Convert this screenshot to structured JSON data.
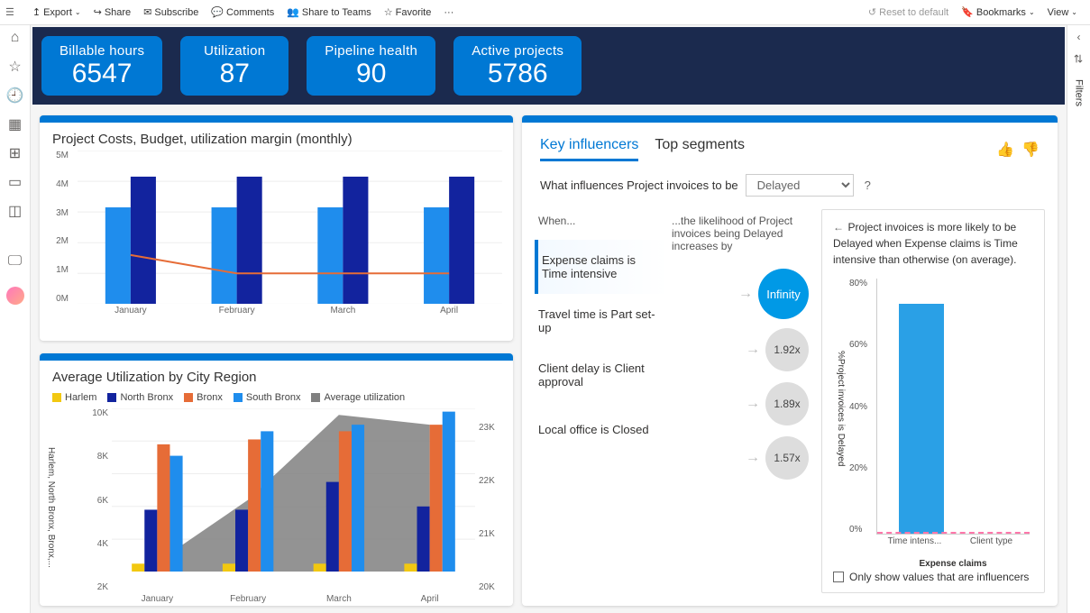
{
  "toolbar": {
    "left": [
      {
        "icon": "export",
        "label": "Export",
        "chev": true
      },
      {
        "icon": "share",
        "label": "Share"
      },
      {
        "icon": "subscribe",
        "label": "Subscribe"
      },
      {
        "icon": "comments",
        "label": "Comments"
      },
      {
        "icon": "teams",
        "label": "Share to Teams"
      },
      {
        "icon": "favorite",
        "label": "Favorite"
      },
      {
        "icon": "more",
        "label": "···"
      }
    ],
    "right": [
      {
        "icon": "reset",
        "label": "Reset to default",
        "muted": true
      },
      {
        "icon": "bookmark",
        "label": "Bookmarks",
        "chev": true
      },
      {
        "icon": "view",
        "label": "View",
        "chev": true
      }
    ]
  },
  "filters_label": "Filters",
  "kpis": [
    {
      "title": "Billable hours",
      "value": "6547"
    },
    {
      "title": "Utilization",
      "value": "87"
    },
    {
      "title": "Pipeline health",
      "value": "90"
    },
    {
      "title": "Active projects",
      "value": "5786"
    }
  ],
  "chart1": {
    "title": "Project Costs, Budget, utilization margin (monthly)",
    "categories": [
      "January",
      "February",
      "March",
      "April"
    ],
    "yticks": [
      "5M",
      "4M",
      "3M",
      "2M",
      "1M",
      "0M"
    ],
    "ylim": [
      0,
      5
    ],
    "series": [
      {
        "name": "Costs",
        "color": "#1f8ded",
        "values": [
          3.15,
          3.15,
          3.15,
          3.15
        ]
      },
      {
        "name": "Budget",
        "color": "#12239e",
        "values": [
          4.15,
          4.15,
          4.15,
          4.15
        ]
      }
    ],
    "line": {
      "name": "Margin",
      "color": "#e66c37",
      "values": [
        1.6,
        1.0,
        1.0,
        1.0
      ]
    }
  },
  "chart2": {
    "title": "Average Utilization by City Region",
    "categories": [
      "January",
      "February",
      "March",
      "April"
    ],
    "yticks": [
      "10K",
      "8K",
      "6K",
      "4K",
      "2K"
    ],
    "yticks_r": [
      "23K",
      "22K",
      "21K",
      "20K"
    ],
    "ylim": [
      0,
      10
    ],
    "y_axis_label": "Harlem, North Bronx, Bronx,...",
    "legend": [
      {
        "name": "Harlem",
        "color": "#f2c811"
      },
      {
        "name": "North Bronx",
        "color": "#12239e"
      },
      {
        "name": "Bronx",
        "color": "#e66c37"
      },
      {
        "name": "South Bronx",
        "color": "#1f8ded"
      },
      {
        "name": "Average utilization",
        "color": "#808080"
      }
    ],
    "series": [
      {
        "name": "Harlem",
        "color": "#f2c811",
        "values": [
          0.5,
          0.5,
          0.5,
          0.5
        ]
      },
      {
        "name": "North Bronx",
        "color": "#12239e",
        "values": [
          3.8,
          3.8,
          5.5,
          4.0
        ]
      },
      {
        "name": "Bronx",
        "color": "#e66c37",
        "values": [
          7.8,
          8.1,
          8.6,
          9.0
        ]
      },
      {
        "name": "South Bronx",
        "color": "#1f8ded",
        "values": [
          7.1,
          8.6,
          9.0,
          9.8
        ]
      }
    ],
    "area": {
      "color": "#808080",
      "opacity": 0.85,
      "values": [
        0.6,
        4.4,
        9.6,
        9.0
      ]
    }
  },
  "influencers": {
    "tabs": {
      "active": "Key influencers",
      "other": "Top segments"
    },
    "question_prefix": "What influences Project invoices to be",
    "dropdown_value": "Delayed",
    "columns": {
      "when": "When...",
      "then": "...the likelihood of Project invoices being Delayed increases by"
    },
    "rows": [
      {
        "text": "Expense claims is Time intensive",
        "value": "Infinity",
        "primary": true
      },
      {
        "text": "Travel time is Part set-up",
        "value": "1.92x"
      },
      {
        "text": "Client delay is Client approval",
        "value": "1.89x"
      },
      {
        "text": "Local office is Closed",
        "value": "1.57x"
      }
    ],
    "detail": {
      "back": "←",
      "desc": "Project invoices is more likely to be Delayed when Expense claims is Time intensive than otherwise (on average).",
      "yticks": [
        "80%",
        "60%",
        "40%",
        "20%",
        "0%"
      ],
      "ylabel": "%Project invoices is Delayed",
      "bar_pct": 72,
      "bar_color": "#2aa0e6",
      "xcats": [
        "Time intens...",
        "Client type"
      ],
      "xtitle": "Expense claims",
      "checkbox": "Only show values that are influencers"
    }
  }
}
